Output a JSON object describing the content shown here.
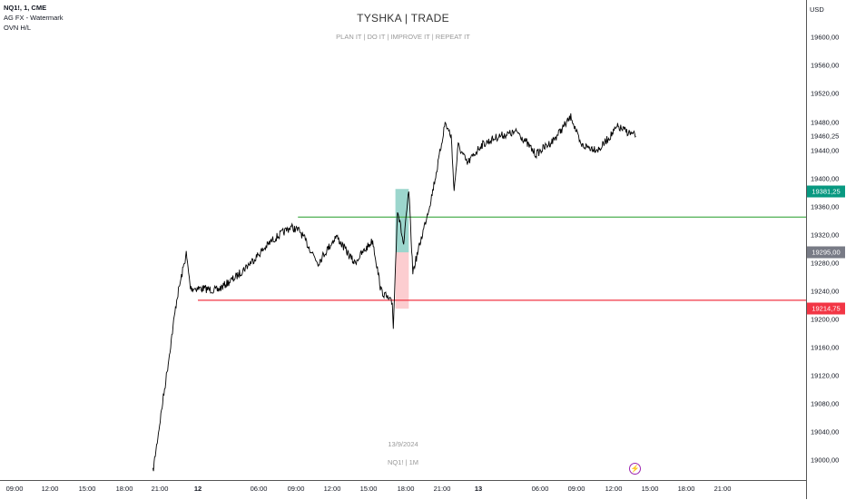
{
  "legend": {
    "symbol": "NQ1!, 1, CME",
    "indicators": [
      "AG FX - Watermark",
      "OVN H/L"
    ]
  },
  "watermark": {
    "title": "TYSHKA | TRADE",
    "subtitle": "PLAN IT  |  DO IT  |  IMPROVE IT | REPEAT IT",
    "date": "13/9/2024",
    "symbol": "NQ1! | 1M"
  },
  "price_axis": {
    "currency": "USD",
    "labels": [
      "19600,00",
      "19560,00",
      "19520,00",
      "19480,00",
      "19440,00",
      "19400,00",
      "19360,00",
      "19320,00",
      "19280,00",
      "19240,00",
      "19200,00",
      "19160,00",
      "19120,00",
      "19080,00",
      "19040,00",
      "19000,00"
    ],
    "last_price": "19460,25",
    "badges": [
      {
        "text": "19381,25",
        "price": 19381.25,
        "color": "#089981"
      },
      {
        "text": "19295,00",
        "price": 19295,
        "color": "#787b86"
      },
      {
        "text": "19214,75",
        "price": 19214.75,
        "color": "#f23645"
      }
    ]
  },
  "time_axis": {
    "labels": [
      {
        "text": "09:00",
        "t": "11 09:00"
      },
      {
        "text": "12:00",
        "t": "11 12:00"
      },
      {
        "text": "15:00",
        "t": "11 15:00"
      },
      {
        "text": "18:00",
        "t": "11 18:00"
      },
      {
        "text": "21:00",
        "t": "11 21:00"
      },
      {
        "text": "12",
        "t": "12 00:00",
        "day": true
      },
      {
        "text": "06:00",
        "t": "12 06:00"
      },
      {
        "text": "09:00",
        "t": "12 09:00"
      },
      {
        "text": "12:00",
        "t": "12 12:00"
      },
      {
        "text": "15:00",
        "t": "12 15:00"
      },
      {
        "text": "18:00",
        "t": "12 18:00"
      },
      {
        "text": "21:00",
        "t": "12 21:00"
      },
      {
        "text": "13",
        "t": "13 00:00",
        "day": true
      },
      {
        "text": "06:00",
        "t": "13 06:00"
      },
      {
        "text": "09:00",
        "t": "13 09:00"
      },
      {
        "text": "12:00",
        "t": "13 12:00"
      },
      {
        "text": "15:00",
        "t": "13 15:00"
      },
      {
        "text": "18:00",
        "t": "13 18:00"
      },
      {
        "text": "21:00",
        "t": "13 21:00"
      }
    ]
  },
  "chart_data": {
    "type": "line",
    "series_color": "#000000",
    "ylim": [
      18975,
      19640
    ],
    "points": [
      [
        "11 20:25",
        18983
      ],
      [
        "11 21:40",
        19138
      ],
      [
        "11 22:20",
        19228
      ],
      [
        "11 23:05",
        19293
      ],
      [
        "11 23:25",
        19244
      ],
      [
        "12 00:10",
        19244
      ],
      [
        "12 01:55",
        19241
      ],
      [
        "12 03:45",
        19260
      ],
      [
        "12 05:35",
        19286
      ],
      [
        "12 07:05",
        19312
      ],
      [
        "12 08:35",
        19331
      ],
      [
        "12 09:20",
        19325
      ],
      [
        "12 10:50",
        19280
      ],
      [
        "12 12:20",
        19318
      ],
      [
        "12 13:50",
        19280
      ],
      [
        "12 15:20",
        19312
      ],
      [
        "12 16:00",
        19241
      ],
      [
        "12 16:55",
        19222
      ],
      [
        "12 17:00",
        19189
      ],
      [
        "12 17:20",
        19357
      ],
      [
        "12 17:50",
        19305
      ],
      [
        "12 18:15",
        19383
      ],
      [
        "12 18:35",
        19267
      ],
      [
        "12 19:20",
        19318
      ],
      [
        "12 20:05",
        19370
      ],
      [
        "12 20:40",
        19421
      ],
      [
        "12 21:15",
        19479
      ],
      [
        "12 21:45",
        19460
      ],
      [
        "12 22:00",
        19383
      ],
      [
        "12 22:20",
        19447
      ],
      [
        "12 23:05",
        19421
      ],
      [
        "13 00:15",
        19447
      ],
      [
        "13 02:00",
        19460
      ],
      [
        "13 03:50",
        19466
      ],
      [
        "13 05:35",
        19434
      ],
      [
        "13 07:05",
        19454
      ],
      [
        "13 08:35",
        19488
      ],
      [
        "13 09:20",
        19447
      ],
      [
        "13 10:50",
        19441
      ],
      [
        "13 12:20",
        19473
      ],
      [
        "13 13:50",
        19460
      ]
    ],
    "ovn_high": {
      "price": 19345,
      "start": "12 09:10",
      "color": "#4caf50"
    },
    "ovn_low": {
      "price": 19227,
      "start": "12 00:00",
      "color": "#f23645"
    },
    "boxes": [
      {
        "from": "12 17:10",
        "to": "12 18:15",
        "top": 19385,
        "bottom": 19295,
        "color": "rgba(8,153,129,0.4)"
      },
      {
        "from": "12 17:10",
        "to": "12 18:15",
        "top": 19295,
        "bottom": 19215,
        "color": "rgba(242,54,69,0.25)"
      }
    ]
  },
  "icons": {
    "alert": "lightning-bolt-icon"
  }
}
